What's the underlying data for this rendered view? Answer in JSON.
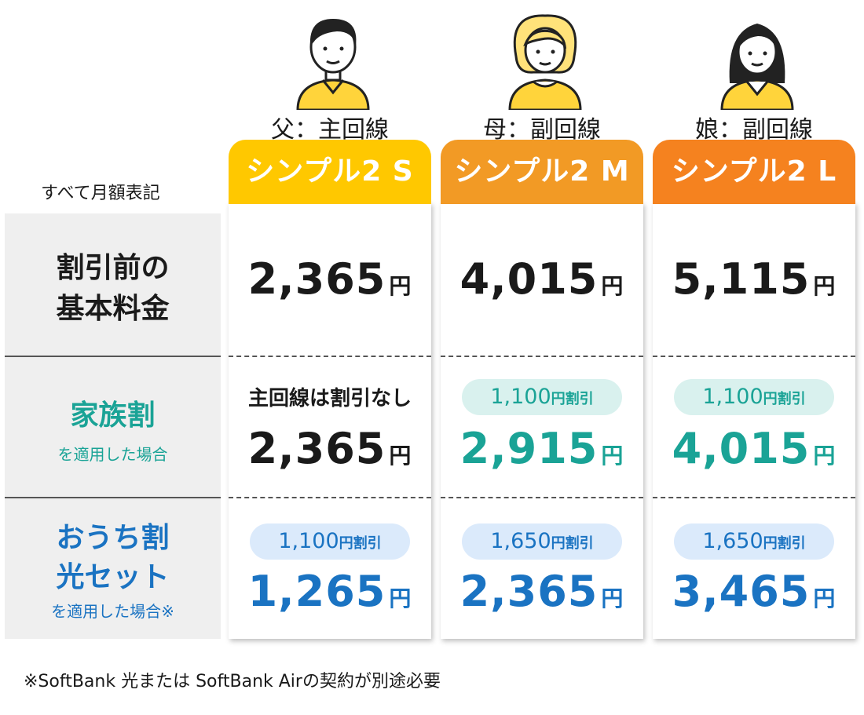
{
  "top_note": "すべて月額表記",
  "footnote": "※SoftBank 光または SoftBank Airの契約が別途必要",
  "colors": {
    "plan_s": "#ffc800",
    "plan_m": "#f29a25",
    "plan_l": "#f5821f",
    "teal": "#1aa396",
    "teal_pill": "#d9f1ee",
    "blue": "#1a73c2",
    "blue_pill": "#dbeafb",
    "label_bg": "#efefef"
  },
  "members": [
    {
      "role": "父：主回線",
      "icon": "father-avatar-icon"
    },
    {
      "role": "母：副回線",
      "icon": "mother-avatar-icon"
    },
    {
      "role": "娘：副回線",
      "icon": "daughter-avatar-icon"
    }
  ],
  "plans": [
    {
      "name": "シンプル2 S"
    },
    {
      "name": "シンプル2 M"
    },
    {
      "name": "シンプル2 L"
    }
  ],
  "rows": {
    "base": {
      "label_line1": "割引前の",
      "label_line2": "基本料金"
    },
    "family": {
      "label": "家族割",
      "sub": "を適用した場合"
    },
    "home": {
      "label_line1": "おうち割",
      "label_line2": "光セット",
      "sub": "を適用した場合※"
    }
  },
  "yen": "円",
  "discount_suffix": "円割引",
  "cells": {
    "base": [
      "2,365",
      "4,015",
      "5,115"
    ],
    "family_note_s": "主回線は割引なし",
    "family_discount": [
      "",
      "1,100",
      "1,100"
    ],
    "family_price": [
      "2,365",
      "2,915",
      "4,015"
    ],
    "home_discount": [
      "1,100",
      "1,650",
      "1,650"
    ],
    "home_price": [
      "1,265",
      "2,365",
      "3,465"
    ]
  }
}
